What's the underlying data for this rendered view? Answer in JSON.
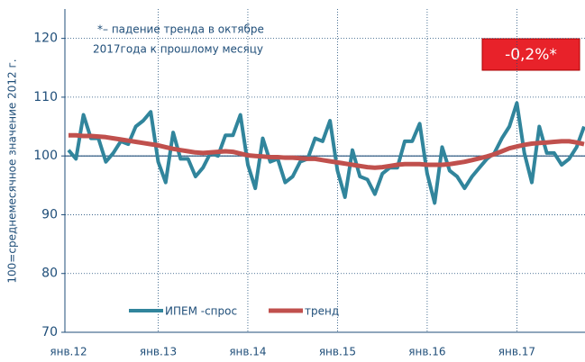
{
  "chart_data": {
    "type": "line",
    "y_axis_label": "100=среднемесячное значение 2012 г.",
    "annotation": [
      "*– падение тренда в октябре",
      "2017года к прошлому  месяцу"
    ],
    "callout": "-0,2%*",
    "categories": [
      "янв.12",
      null,
      null,
      null,
      null,
      null,
      null,
      null,
      null,
      null,
      null,
      null,
      "янв.13",
      null,
      null,
      null,
      null,
      null,
      null,
      null,
      null,
      null,
      null,
      null,
      "янв.14",
      null,
      null,
      null,
      null,
      null,
      null,
      null,
      null,
      null,
      null,
      null,
      "янв.15",
      null,
      null,
      null,
      null,
      null,
      null,
      null,
      null,
      null,
      null,
      null,
      "янв.16",
      null,
      null,
      null,
      null,
      null,
      null,
      null,
      null,
      null,
      null,
      null,
      "янв.17",
      null,
      null,
      null,
      null,
      null,
      null,
      null,
      null,
      null
    ],
    "series": [
      {
        "name": "ИПЕМ -спрос",
        "color": "#31859c",
        "values": [
          101,
          99.5,
          107,
          103,
          103,
          99,
          100.5,
          102.5,
          102,
          105,
          106,
          107.5,
          99,
          95.5,
          104,
          99.5,
          99.5,
          96.5,
          98,
          100.5,
          100,
          103.5,
          103.5,
          107,
          98.5,
          94.5,
          103,
          99,
          99.5,
          95.5,
          96.5,
          99,
          99.5,
          103,
          102.5,
          106,
          97.5,
          93,
          101,
          96.5,
          96,
          93.5,
          97,
          98,
          98,
          102.5,
          102.5,
          105.5,
          97,
          92,
          101.5,
          97.5,
          96.5,
          94.5,
          96.5,
          98,
          99.5,
          100.5,
          103,
          105,
          109,
          100.5,
          95.5,
          105,
          100.5,
          100.5,
          98.5,
          99.5,
          101.5,
          105
        ]
      },
      {
        "name": "тренд",
        "color": "#c0504d",
        "values": [
          103.5,
          103.5,
          103.4,
          103.4,
          103.3,
          103.2,
          103.0,
          102.8,
          102.6,
          102.4,
          102.2,
          102.0,
          101.8,
          101.5,
          101.2,
          101.0,
          100.8,
          100.6,
          100.5,
          100.6,
          100.7,
          100.8,
          100.7,
          100.4,
          100.1,
          100.0,
          99.9,
          99.8,
          99.8,
          99.7,
          99.7,
          99.6,
          99.5,
          99.5,
          99.3,
          99.1,
          98.9,
          98.7,
          98.5,
          98.3,
          98.1,
          98.0,
          98.1,
          98.3,
          98.5,
          98.6,
          98.6,
          98.6,
          98.5,
          98.5,
          98.5,
          98.6,
          98.8,
          99.0,
          99.3,
          99.6,
          99.9,
          100.3,
          100.8,
          101.3,
          101.6,
          101.9,
          102.1,
          102.2,
          102.3,
          102.4,
          102.5,
          102.5,
          102.3,
          102.0
        ]
      }
    ],
    "reference_line": 100,
    "ylim": [
      70,
      125
    ],
    "yticks": [
      70,
      80,
      90,
      100,
      110,
      120
    ],
    "grid": true,
    "legend": "bottom"
  }
}
